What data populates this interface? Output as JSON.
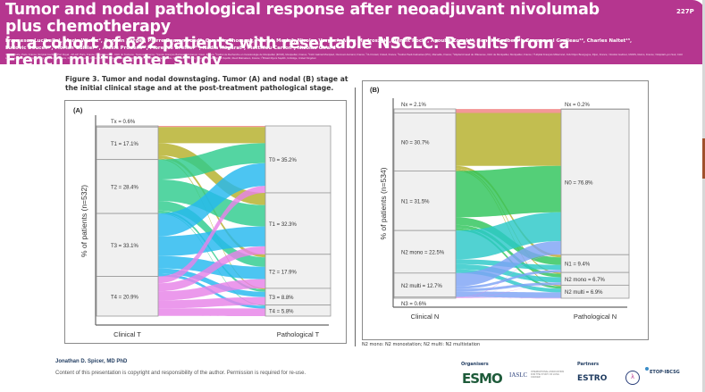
{
  "poster": {
    "title_line1": "Tumor and nodal pathological response after neoadjuvant nivolumab plus chemotherapy",
    "title_line2": "in a cohort of 622 patients with resectable NSCLC: Results from a French multicenter study",
    "abstract_code": "227P",
    "authors_line1": "Francesca Lucibello¹, Marie Wislez², Romain Vergé³, Pierre Demontrond⁴, Quentin Thomas⁵, Patrick Merle⁶, Nicolas Verger⁷, Anne Madroszyk⁸, Benoit Roch⁹, Ayoube Zouak¹⁰, Benoit Godbert¹¹, Emmanuel Grolleau¹², Charles Naltet¹³,",
    "authors_line2": "Ludovic Doucet¹⁴, Florian Guisier¹⁵, Alexis Prudent¹⁶, Florence Brellier¹⁷, Nadia Hegarat¹, Matthieu Carton¹, Nicolas Girard¹",
    "affiliations": "¹Institut Curie, Paris, France; ²Hôpital Cochin - Port Royal - AP-HP, Paris, France; ³Hôpital Larrey - CHU de Toulouse, Toulouse, France; ⁴Centre François Baclesse Unicancer, Caen, France; ⁵Institut de Recherche en Cancérologie de Montpellier (IRCM), Montpellier, France; ⁶CHU Gabriel Montpied, Clermont-Ferrand, France; ⁷CH Créteil, Créteil, France; ⁸Institut Paoli-Calmettes (IPC), Marseille, France; ⁹Hôpital Arnaud de Villeneuve, CHU de Montpellier, Montpellier, France; ¹⁰Hôpital François Mitterrand, CHU Dijon Bourgogne, Dijon, France; ¹¹Institut Godinot, UNIDS, Reims, France; ¹²Hôpital Lyon Sud, CHU Lyon, Lyon, France; ¹³Hôpital Paris Saint-Joseph, Paris, France; ¹⁴Institut de Cancérologie de l'Ouest, Saint Herblain, France; ¹⁵Hôpital Charles-Nicolle, CHU Rouen, Rouen, France; ¹⁶Bristol Myers Squibb, Rueil Malmaison, France; ¹⁷Bristol Myers Squibb, Uxbridge, United Kingdom",
    "figure_caption": "Figure 3. Tumor and nodal downstaging. Tumor (A) and nodal (B) stage at the initial clinical stage and at the post-treatment pathological stage.",
    "footnote": "N2 mono: N2 monostation; N2 multi: N2 multistation",
    "presenter": "Jonathan D. Spicer, MD PhD",
    "copyright": "Content of this presentation is copyright and responsibility of the author. Permission is required for re-use.",
    "organisers_label": "Organisers",
    "partners_label": "Partners",
    "logos": {
      "esmo": "ESMO",
      "iaslc": "IASLC",
      "iaslc_sub": "INTERNATIONAL ASSOCIATION FOR THE STUDY OF LUNG CANCER",
      "estro": "ESTRO",
      "ifct": "λ",
      "etop": "ETOP·IBCSG"
    }
  },
  "chart_data": [
    {
      "type": "sankey",
      "panel": "(A)",
      "ylabel": "% of patients (n=532)",
      "left_axis_label": "Clinical T",
      "right_axis_label": "Pathological T",
      "left_nodes": [
        {
          "name": "Tx",
          "value": 0.6,
          "label": "Tx = 0.6%",
          "color": "#f08080"
        },
        {
          "name": "T1",
          "value": 17.1,
          "label": "T1 = 17.1%",
          "color": "#b5b02a"
        },
        {
          "name": "T2",
          "value": 28.4,
          "label": "T2 = 28.4%",
          "color": "#2ecc8e"
        },
        {
          "name": "T3",
          "value": 33.1,
          "label": "T3 = 33.1%",
          "color": "#25b8ef"
        },
        {
          "name": "T4",
          "value": 20.9,
          "label": "T4 = 20.9%",
          "color": "#e783e8"
        }
      ],
      "right_nodes": [
        {
          "name": "T0",
          "value": 35.2,
          "label": "T0 = 35.2%"
        },
        {
          "name": "T1",
          "value": 32.3,
          "label": "T1 = 32.3%"
        },
        {
          "name": "T2",
          "value": 17.9,
          "label": "T2 = 17.9%"
        },
        {
          "name": "T3",
          "value": 8.8,
          "label": "T3 = 8.8%"
        },
        {
          "name": "T4",
          "value": 5.8,
          "label": "T4 = 5.8%"
        }
      ],
      "flows": [
        {
          "from": "Tx",
          "to": "T0",
          "value": 0.6
        },
        {
          "from": "T1",
          "to": "T0",
          "value": 8.5
        },
        {
          "from": "T1",
          "to": "T1",
          "value": 6.4
        },
        {
          "from": "T1",
          "to": "T2",
          "value": 1.6
        },
        {
          "from": "T1",
          "to": "T3",
          "value": 0.6
        },
        {
          "from": "T2",
          "to": "T0",
          "value": 10.5
        },
        {
          "from": "T2",
          "to": "T1",
          "value": 11.3
        },
        {
          "from": "T2",
          "to": "T2",
          "value": 5.0
        },
        {
          "from": "T2",
          "to": "T3",
          "value": 1.2
        },
        {
          "from": "T2",
          "to": "T4",
          "value": 0.4
        },
        {
          "from": "T3",
          "to": "T0",
          "value": 12.0
        },
        {
          "from": "T3",
          "to": "T1",
          "value": 10.4
        },
        {
          "from": "T3",
          "to": "T2",
          "value": 6.5
        },
        {
          "from": "T3",
          "to": "T3",
          "value": 2.8
        },
        {
          "from": "T3",
          "to": "T4",
          "value": 1.4
        },
        {
          "from": "T4",
          "to": "T0",
          "value": 3.6
        },
        {
          "from": "T4",
          "to": "T1",
          "value": 4.2
        },
        {
          "from": "T4",
          "to": "T2",
          "value": 4.8
        },
        {
          "from": "T4",
          "to": "T3",
          "value": 4.2
        },
        {
          "from": "T4",
          "to": "T4",
          "value": 4.0
        }
      ]
    },
    {
      "type": "sankey",
      "panel": "(B)",
      "ylabel": "% of patients (n=534)",
      "left_axis_label": "Clinical N",
      "right_axis_label": "Pathological N",
      "left_nodes": [
        {
          "name": "Nx",
          "value": 2.1,
          "label": "Nx = 2.1%",
          "color": "#f08080"
        },
        {
          "name": "N0",
          "value": 30.7,
          "label": "N0 = 30.7%",
          "color": "#b5b02a"
        },
        {
          "name": "N1",
          "value": 31.5,
          "label": "N1 = 31.5%",
          "color": "#2ec45a"
        },
        {
          "name": "N2 mono",
          "value": 22.5,
          "label": "N2 mono = 22.5%",
          "color": "#2bc8c8"
        },
        {
          "name": "N2 multi",
          "value": 12.7,
          "label": "N2 multi = 12.7%",
          "color": "#7ea3f5"
        },
        {
          "name": "N3",
          "value": 0.6,
          "label": "N3 = 0.6%",
          "color": "#e783e8"
        }
      ],
      "right_nodes": [
        {
          "name": "Nx",
          "value": 0.2,
          "label": "Nx = 0.2%"
        },
        {
          "name": "N0",
          "value": 76.8,
          "label": "N0 = 76.8%"
        },
        {
          "name": "N1",
          "value": 9.4,
          "label": "N1 = 9.4%"
        },
        {
          "name": "N2 mono",
          "value": 6.7,
          "label": "N2 mono = 6.7%"
        },
        {
          "name": "N2 multi",
          "value": 6.9,
          "label": "N2 multi = 6.9%"
        }
      ],
      "flows": [
        {
          "from": "Nx",
          "to": "Nx",
          "value": 0.2
        },
        {
          "from": "Nx",
          "to": "N0",
          "value": 1.9
        },
        {
          "from": "N0",
          "to": "N0",
          "value": 28.0
        },
        {
          "from": "N0",
          "to": "N1",
          "value": 1.4
        },
        {
          "from": "N0",
          "to": "N2 mono",
          "value": 0.7
        },
        {
          "from": "N0",
          "to": "N2 multi",
          "value": 0.6
        },
        {
          "from": "N1",
          "to": "N0",
          "value": 24.5
        },
        {
          "from": "N1",
          "to": "N1",
          "value": 4.0
        },
        {
          "from": "N1",
          "to": "N2 mono",
          "value": 1.8
        },
        {
          "from": "N1",
          "to": "N2 multi",
          "value": 1.2
        },
        {
          "from": "N2 mono",
          "to": "N0",
          "value": 15.2
        },
        {
          "from": "N2 mono",
          "to": "N1",
          "value": 2.6
        },
        {
          "from": "N2 mono",
          "to": "N2 mono",
          "value": 2.7
        },
        {
          "from": "N2 mono",
          "to": "N2 multi",
          "value": 2.0
        },
        {
          "from": "N2 multi",
          "to": "N0",
          "value": 7.0
        },
        {
          "from": "N2 multi",
          "to": "N1",
          "value": 1.3
        },
        {
          "from": "N2 multi",
          "to": "N2 mono",
          "value": 1.4
        },
        {
          "from": "N2 multi",
          "to": "N2 multi",
          "value": 3.0
        },
        {
          "from": "N3",
          "to": "N0",
          "value": 0.2
        },
        {
          "from": "N3",
          "to": "N1",
          "value": 0.1
        },
        {
          "from": "N3",
          "to": "N2 multi",
          "value": 0.1
        },
        {
          "from": "N3",
          "to": "N2 mono",
          "value": 0.1
        },
        {
          "from": "N3",
          "to": "N2 multi",
          "value": 0.1
        }
      ]
    }
  ]
}
